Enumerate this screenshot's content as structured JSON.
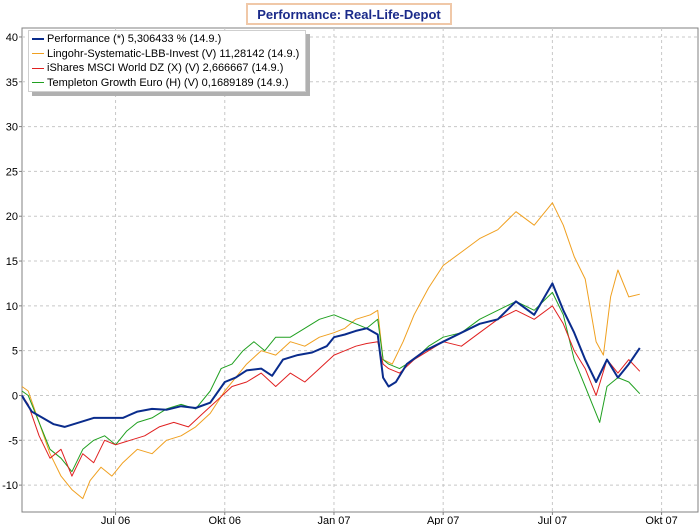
{
  "chart_data": {
    "type": "line",
    "title": "Performance: Real-Life-Depot",
    "xlabel": "",
    "ylabel": "",
    "ylim": [
      -13,
      41
    ],
    "yticks": [
      -10,
      -5,
      0,
      5,
      10,
      15,
      20,
      25,
      30,
      35,
      40
    ],
    "x_unit": "months since 1 Apr 2006",
    "xlim": [
      0.43,
      19.0
    ],
    "xticks": [
      {
        "label": "Jul 06",
        "x": 3
      },
      {
        "label": "Okt 06",
        "x": 6
      },
      {
        "label": "Jan 07",
        "x": 9
      },
      {
        "label": "Apr 07",
        "x": 12
      },
      {
        "label": "Jul 07",
        "x": 15
      },
      {
        "label": "Okt 07",
        "x": 18
      }
    ],
    "grid": true,
    "legend_position": "top-left",
    "series": [
      {
        "name": "Performance (*)",
        "legend_label": "Performance (*) 5,306433 % (14.9.)",
        "color": "#0a2c8c",
        "line_width": 2,
        "x": [
          0.43,
          0.5,
          0.7,
          1.0,
          1.3,
          1.6,
          2.0,
          2.4,
          2.8,
          3.2,
          3.6,
          4.0,
          4.4,
          4.8,
          5.2,
          5.6,
          6.0,
          6.3,
          6.6,
          7.0,
          7.3,
          7.6,
          8.0,
          8.4,
          8.8,
          9.0,
          9.3,
          9.6,
          9.9,
          10.2,
          10.35,
          10.5,
          10.7,
          11.0,
          11.5,
          12.0,
          12.5,
          13.0,
          13.5,
          14.0,
          14.5,
          15.0,
          15.3,
          15.6,
          15.9,
          16.2,
          16.5,
          16.8,
          17.1,
          17.4
        ],
        "y": [
          0,
          -0.5,
          -1.8,
          -2.5,
          -3.2,
          -3.5,
          -3.0,
          -2.5,
          -2.5,
          -2.5,
          -1.8,
          -1.5,
          -1.6,
          -1.2,
          -1.4,
          -0.8,
          1.5,
          2.0,
          2.8,
          3.0,
          2.2,
          4.0,
          4.5,
          4.8,
          5.5,
          6.5,
          6.8,
          7.2,
          7.5,
          6.8,
          2.0,
          1.0,
          1.5,
          3.5,
          5.0,
          6.0,
          7.0,
          8.0,
          8.5,
          10.5,
          9.0,
          12.5,
          9.5,
          7.0,
          4.0,
          1.5,
          4.0,
          2.0,
          3.5,
          5.3
        ]
      },
      {
        "name": "Lingohr-Systematic-LBB-Invest (V)",
        "legend_label": "Lingohr-Systematic-LBB-Invest (V) 11,28142 (14.9.)",
        "color": "#f0a020",
        "line_width": 1,
        "x": [
          0.43,
          0.6,
          0.9,
          1.2,
          1.5,
          1.8,
          2.1,
          2.3,
          2.6,
          2.9,
          3.2,
          3.6,
          4.0,
          4.4,
          4.8,
          5.2,
          5.6,
          6.0,
          6.3,
          6.6,
          7.0,
          7.4,
          7.8,
          8.2,
          8.6,
          9.0,
          9.3,
          9.6,
          10.0,
          10.2,
          10.35,
          10.6,
          10.9,
          11.2,
          11.6,
          12.0,
          12.5,
          13.0,
          13.5,
          14.0,
          14.5,
          15.0,
          15.3,
          15.6,
          15.9,
          16.2,
          16.4,
          16.6,
          16.8,
          17.1,
          17.4
        ],
        "y": [
          1.0,
          0.5,
          -3.0,
          -6.5,
          -9.0,
          -10.5,
          -11.5,
          -9.5,
          -8.0,
          -9.0,
          -7.5,
          -6.0,
          -6.5,
          -5.0,
          -4.5,
          -3.5,
          -2.0,
          0.5,
          2.0,
          3.5,
          5.0,
          4.5,
          6.0,
          5.5,
          6.5,
          7.0,
          7.5,
          8.5,
          9.0,
          9.5,
          4.0,
          3.5,
          6.0,
          9.0,
          12.0,
          14.5,
          16.0,
          17.5,
          18.5,
          20.5,
          19.0,
          21.5,
          19.0,
          15.5,
          13.0,
          6.0,
          4.5,
          11.0,
          14.0,
          11.0,
          11.3
        ]
      },
      {
        "name": "iShares MSCI World DZ (X) (V)",
        "legend_label": "iShares MSCI World DZ (X) (V) 2,666667 (14.9.)",
        "color": "#e02020",
        "line_width": 1,
        "x": [
          0.43,
          0.6,
          0.9,
          1.2,
          1.5,
          1.8,
          2.1,
          2.4,
          2.7,
          3.0,
          3.4,
          3.8,
          4.2,
          4.6,
          5.0,
          5.4,
          5.8,
          6.2,
          6.6,
          7.0,
          7.4,
          7.8,
          8.2,
          8.6,
          9.0,
          9.3,
          9.6,
          9.9,
          10.2,
          10.35,
          10.5,
          10.8,
          11.2,
          11.6,
          12.0,
          12.5,
          13.0,
          13.5,
          14.0,
          14.5,
          15.0,
          15.3,
          15.6,
          15.9,
          16.2,
          16.5,
          16.8,
          17.1,
          17.4
        ],
        "y": [
          0,
          -1.0,
          -4.5,
          -7.0,
          -6.0,
          -9.0,
          -6.5,
          -7.5,
          -5.0,
          -5.5,
          -5.0,
          -4.5,
          -3.5,
          -3.0,
          -3.5,
          -2.0,
          -0.5,
          1.0,
          1.5,
          2.5,
          1.0,
          2.5,
          1.5,
          3.0,
          4.5,
          5.0,
          5.5,
          5.8,
          6.0,
          3.5,
          3.0,
          2.5,
          4.0,
          5.0,
          6.0,
          5.5,
          7.0,
          8.5,
          9.5,
          8.5,
          10.0,
          8.0,
          5.0,
          3.0,
          0.0,
          4.0,
          2.5,
          4.0,
          2.7
        ]
      },
      {
        "name": "Templeton Growth Euro (H) (V)",
        "legend_label": "Templeton Growth Euro (H) (V) 0,1689189 (14.9.)",
        "color": "#20a020",
        "line_width": 1,
        "x": [
          0.43,
          0.6,
          0.9,
          1.2,
          1.5,
          1.8,
          2.1,
          2.4,
          2.7,
          3.0,
          3.3,
          3.6,
          4.0,
          4.4,
          4.8,
          5.2,
          5.6,
          5.9,
          6.2,
          6.5,
          6.8,
          7.1,
          7.4,
          7.8,
          8.2,
          8.6,
          9.0,
          9.3,
          9.6,
          9.9,
          10.2,
          10.35,
          10.5,
          10.8,
          11.2,
          11.6,
          12.0,
          12.5,
          13.0,
          13.5,
          14.0,
          14.5,
          15.0,
          15.3,
          15.6,
          15.9,
          16.1,
          16.3,
          16.5,
          16.8,
          17.1,
          17.4
        ],
        "y": [
          0.5,
          0,
          -3.0,
          -6.0,
          -7.0,
          -8.5,
          -6.0,
          -5.0,
          -4.5,
          -5.5,
          -4.0,
          -3.0,
          -2.5,
          -1.5,
          -1.0,
          -1.5,
          0.5,
          3.0,
          3.5,
          5.0,
          6.0,
          5.0,
          6.5,
          6.5,
          7.5,
          8.5,
          9.0,
          8.5,
          8.0,
          7.5,
          8.5,
          4.0,
          3.5,
          3.0,
          4.0,
          5.5,
          6.5,
          7.0,
          8.5,
          9.5,
          10.5,
          9.5,
          11.5,
          9.0,
          4.0,
          1.0,
          -1.0,
          -3.0,
          1.0,
          2.0,
          1.5,
          0.2
        ]
      }
    ]
  }
}
